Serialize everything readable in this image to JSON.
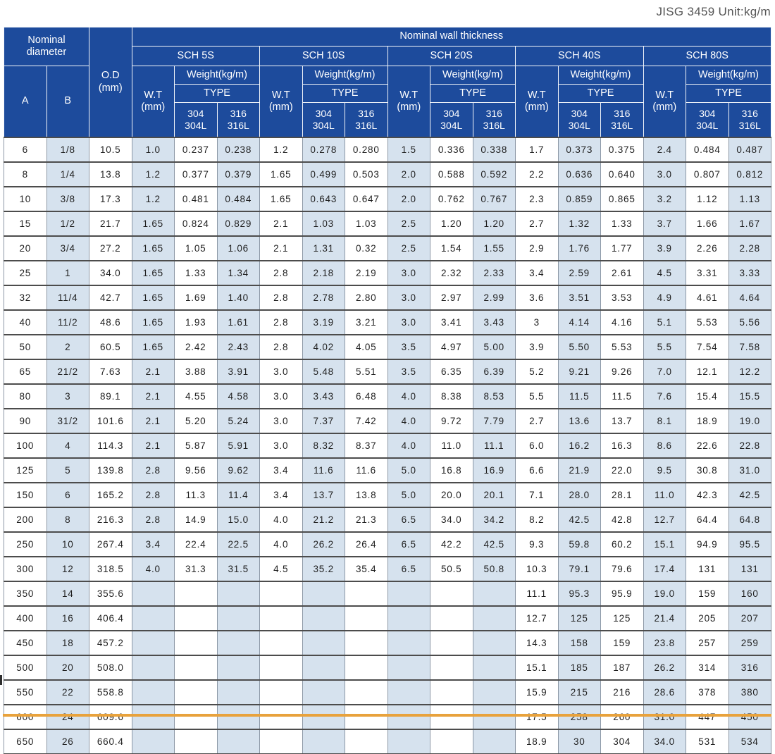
{
  "page": {
    "unit_label": "JISG 3459 Unit:kg/m"
  },
  "colors": {
    "header_blue": "#1d4b9c",
    "shade_blue": "#d6e2ee",
    "accent_orange": "#e8a23c",
    "grid_dark": "#4c4c4c",
    "grid_light": "#8b97a5"
  },
  "table": {
    "header": {
      "nominal_diameter": "Nominal\ndiameter",
      "od": "O.D\n(mm)",
      "nominal_wall_thickness": "Nominal wall thickness",
      "a": "A",
      "b": "B",
      "wt": "W.T\n(mm)",
      "weight": "Weight(kg/m)",
      "type": "TYPE",
      "type_304": "304\n304L",
      "type_316": "316\n316L",
      "sch": [
        "SCH 5S",
        "SCH 10S",
        "SCH 20S",
        "SCH 40S",
        "SCH 80S"
      ]
    },
    "rows": [
      [
        "6",
        "1/8",
        "10.5",
        "1.0",
        "0.237",
        "0.238",
        "1.2",
        "0.278",
        "0.280",
        "1.5",
        "0.336",
        "0.338",
        "1.7",
        "0.373",
        "0.375",
        "2.4",
        "0.484",
        "0.487"
      ],
      [
        "8",
        "1/4",
        "13.8",
        "1.2",
        "0.377",
        "0.379",
        "1.65",
        "0.499",
        "0.503",
        "2.0",
        "0.588",
        "0.592",
        "2.2",
        "0.636",
        "0.640",
        "3.0",
        "0.807",
        "0.812"
      ],
      [
        "10",
        "3/8",
        "17.3",
        "1.2",
        "0.481",
        "0.484",
        "1.65",
        "0.643",
        "0.647",
        "2.0",
        "0.762",
        "0.767",
        "2.3",
        "0.859",
        "0.865",
        "3.2",
        "1.12",
        "1.13"
      ],
      [
        "15",
        "1/2",
        "21.7",
        "1.65",
        "0.824",
        "0.829",
        "2.1",
        "1.03",
        "1.03",
        "2.5",
        "1.20",
        "1.20",
        "2.7",
        "1.32",
        "1.33",
        "3.7",
        "1.66",
        "1.67"
      ],
      [
        "20",
        "3/4",
        "27.2",
        "1.65",
        "1.05",
        "1.06",
        "2.1",
        "1.31",
        "0.32",
        "2.5",
        "1.54",
        "1.55",
        "2.9",
        "1.76",
        "1.77",
        "3.9",
        "2.26",
        "2.28"
      ],
      [
        "25",
        "1",
        "34.0",
        "1.65",
        "1.33",
        "1.34",
        "2.8",
        "2.18",
        "2.19",
        "3.0",
        "2.32",
        "2.33",
        "3.4",
        "2.59",
        "2.61",
        "4.5",
        "3.31",
        "3.33"
      ],
      [
        "32",
        "11/4",
        "42.7",
        "1.65",
        "1.69",
        "1.40",
        "2.8",
        "2.78",
        "2.80",
        "3.0",
        "2.97",
        "2.99",
        "3.6",
        "3.51",
        "3.53",
        "4.9",
        "4.61",
        "4.64"
      ],
      [
        "40",
        "11/2",
        "48.6",
        "1.65",
        "1.93",
        "1.61",
        "2.8",
        "3.19",
        "3.21",
        "3.0",
        "3.41",
        "3.43",
        "3",
        "4.14",
        "4.16",
        "5.1",
        "5.53",
        "5.56"
      ],
      [
        "50",
        "2",
        "60.5",
        "1.65",
        "2.42",
        "2.43",
        "2.8",
        "4.02",
        "4.05",
        "3.5",
        "4.97",
        "5.00",
        "3.9",
        "5.50",
        "5.53",
        "5.5",
        "7.54",
        "7.58"
      ],
      [
        "65",
        "21/2",
        "7.63",
        "2.1",
        "3.88",
        "3.91",
        "3.0",
        "5.48",
        "5.51",
        "3.5",
        "6.35",
        "6.39",
        "5.2",
        "9.21",
        "9.26",
        "7.0",
        "12.1",
        "12.2"
      ],
      [
        "80",
        "3",
        "89.1",
        "2.1",
        "4.55",
        "4.58",
        "3.0",
        "3.43",
        "6.48",
        "4.0",
        "8.38",
        "8.53",
        "5.5",
        "11.5",
        "11.5",
        "7.6",
        "15.4",
        "15.5"
      ],
      [
        "90",
        "31/2",
        "101.6",
        "2.1",
        "5.20",
        "5.24",
        "3.0",
        "7.37",
        "7.42",
        "4.0",
        "9.72",
        "7.79",
        "2.7",
        "13.6",
        "13.7",
        "8.1",
        "18.9",
        "19.0"
      ],
      [
        "100",
        "4",
        "114.3",
        "2.1",
        "5.87",
        "5.91",
        "3.0",
        "8.32",
        "8.37",
        "4.0",
        "11.0",
        "11.1",
        "6.0",
        "16.2",
        "16.3",
        "8.6",
        "22.6",
        "22.8"
      ],
      [
        "125",
        "5",
        "139.8",
        "2.8",
        "9.56",
        "9.62",
        "3.4",
        "11.6",
        "11.6",
        "5.0",
        "16.8",
        "16.9",
        "6.6",
        "21.9",
        "22.0",
        "9.5",
        "30.8",
        "31.0"
      ],
      [
        "150",
        "6",
        "165.2",
        "2.8",
        "11.3",
        "11.4",
        "3.4",
        "13.7",
        "13.8",
        "5.0",
        "20.0",
        "20.1",
        "7.1",
        "28.0",
        "28.1",
        "11.0",
        "42.3",
        "42.5"
      ],
      [
        "200",
        "8",
        "216.3",
        "2.8",
        "14.9",
        "15.0",
        "4.0",
        "21.2",
        "21.3",
        "6.5",
        "34.0",
        "34.2",
        "8.2",
        "42.5",
        "42.8",
        "12.7",
        "64.4",
        "64.8"
      ],
      [
        "250",
        "10",
        "267.4",
        "3.4",
        "22.4",
        "22.5",
        "4.0",
        "26.2",
        "26.4",
        "6.5",
        "42.2",
        "42.5",
        "9.3",
        "59.8",
        "60.2",
        "15.1",
        "94.9",
        "95.5"
      ],
      [
        "300",
        "12",
        "318.5",
        "4.0",
        "31.3",
        "31.5",
        "4.5",
        "35.2",
        "35.4",
        "6.5",
        "50.5",
        "50.8",
        "10.3",
        "79.1",
        "79.6",
        "17.4",
        "131",
        "131"
      ],
      [
        "350",
        "14",
        "355.6",
        "",
        "",
        "",
        "",
        "",
        "",
        "",
        "",
        "",
        "11.1",
        "95.3",
        "95.9",
        "19.0",
        "159",
        "160"
      ],
      [
        "400",
        "16",
        "406.4",
        "",
        "",
        "",
        "",
        "",
        "",
        "",
        "",
        "",
        "12.7",
        "125",
        "125",
        "21.4",
        "205",
        "207"
      ],
      [
        "450",
        "18",
        "457.2",
        "",
        "",
        "",
        "",
        "",
        "",
        "",
        "",
        "",
        "14.3",
        "158",
        "159",
        "23.8",
        "257",
        "259"
      ],
      [
        "500",
        "20",
        "508.0",
        "",
        "",
        "",
        "",
        "",
        "",
        "",
        "",
        "",
        "15.1",
        "185",
        "187",
        "26.2",
        "314",
        "316"
      ],
      [
        "550",
        "22",
        "558.8",
        "",
        "",
        "",
        "",
        "",
        "",
        "",
        "",
        "",
        "15.9",
        "215",
        "216",
        "28.6",
        "378",
        "380"
      ],
      [
        "600",
        "24",
        "609.6",
        "",
        "",
        "",
        "",
        "",
        "",
        "",
        "",
        "",
        "17.5",
        "258",
        "260",
        "31.0",
        "447",
        "450"
      ],
      [
        "650",
        "26",
        "660.4",
        "",
        "",
        "",
        "",
        "",
        "",
        "",
        "",
        "",
        "18.9",
        "30",
        "304",
        "34.0",
        "531",
        "534"
      ]
    ]
  }
}
